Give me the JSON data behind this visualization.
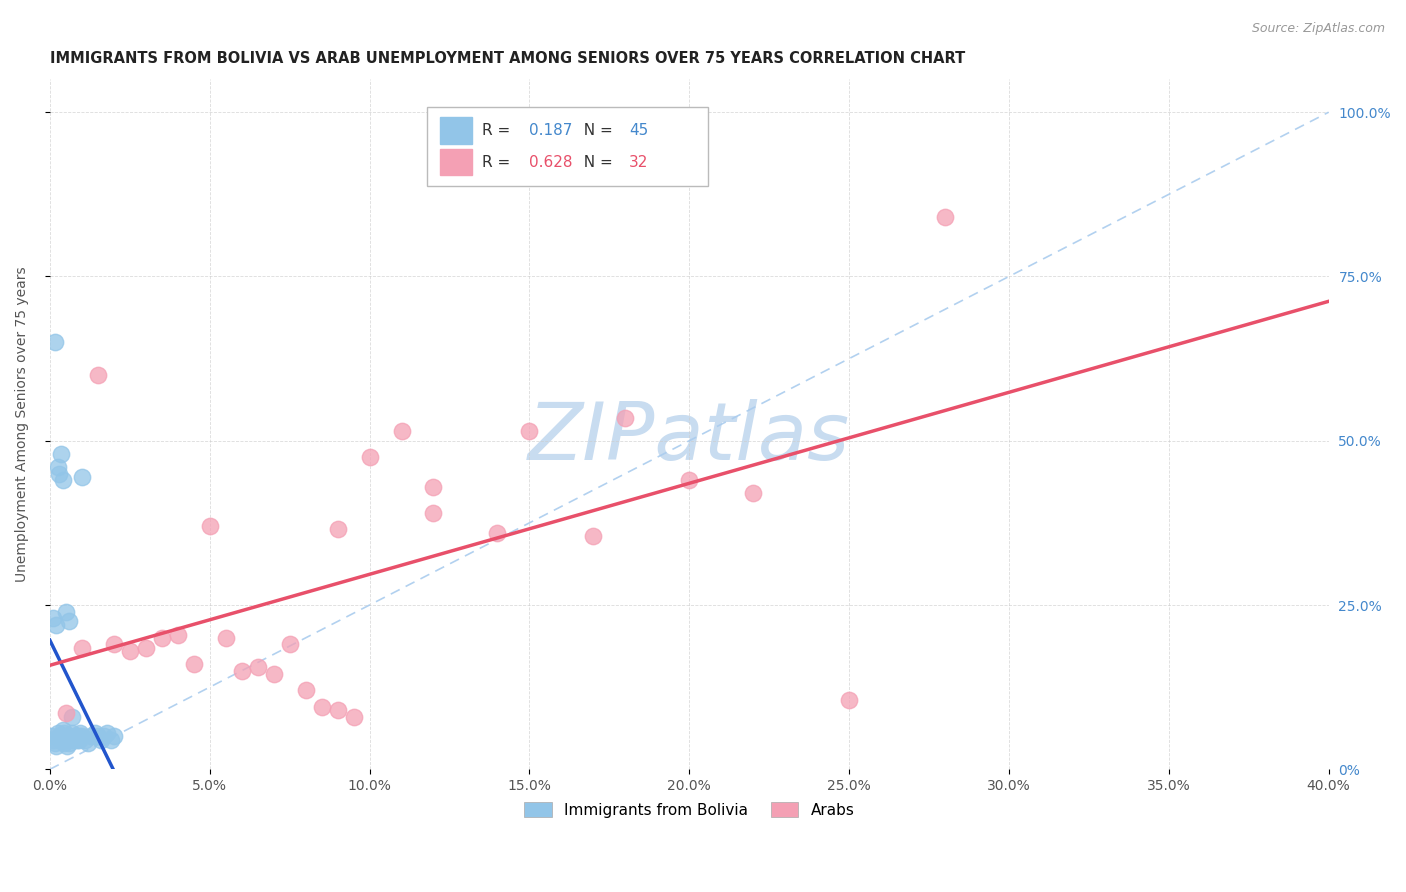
{
  "title": "IMMIGRANTS FROM BOLIVIA VS ARAB UNEMPLOYMENT AMONG SENIORS OVER 75 YEARS CORRELATION CHART",
  "source": "Source: ZipAtlas.com",
  "ylabel": "Unemployment Among Seniors over 75 years",
  "x_tick_labels": [
    "0.0%",
    "5.0%",
    "10.0%",
    "15.0%",
    "20.0%",
    "25.0%",
    "30.0%",
    "35.0%",
    "40.0%"
  ],
  "x_tick_values": [
    0.0,
    5.0,
    10.0,
    15.0,
    20.0,
    25.0,
    30.0,
    35.0,
    40.0
  ],
  "y_tick_labels_right": [
    "0%",
    "25.0%",
    "50.0%",
    "75.0%",
    "100.0%"
  ],
  "y_tick_values": [
    0,
    25,
    50,
    75,
    100
  ],
  "xlim": [
    0,
    40
  ],
  "ylim": [
    0,
    105
  ],
  "bolivia_R": 0.187,
  "bolivia_N": 45,
  "arab_R": 0.628,
  "arab_N": 32,
  "bolivia_color": "#92C5E8",
  "arab_color": "#F4A0B4",
  "bolivia_line_color": "#2255CC",
  "arab_line_color": "#E8506A",
  "legend_label_bolivia": "Immigrants from Bolivia",
  "legend_label_arab": "Arabs",
  "watermark": "ZIPatlas",
  "watermark_color": "#C8DCF0",
  "bolivia_x": [
    0.05,
    0.1,
    0.15,
    0.2,
    0.25,
    0.3,
    0.35,
    0.4,
    0.45,
    0.5,
    0.55,
    0.6,
    0.65,
    0.7,
    0.75,
    0.8,
    0.85,
    0.9,
    0.95,
    1.0,
    1.1,
    1.2,
    1.3,
    1.4,
    1.5,
    1.6,
    1.7,
    1.8,
    1.9,
    2.0,
    0.1,
    0.2,
    0.3,
    0.4,
    0.5,
    0.6,
    0.7,
    0.8,
    0.9,
    1.0,
    0.15,
    0.25,
    0.35,
    0.45,
    0.55
  ],
  "bolivia_y": [
    5.0,
    4.5,
    4.0,
    3.5,
    5.5,
    5.0,
    4.5,
    6.0,
    5.5,
    5.0,
    4.5,
    4.0,
    5.0,
    5.5,
    4.5,
    5.0,
    4.5,
    5.0,
    5.5,
    5.0,
    4.5,
    4.0,
    5.0,
    5.5,
    5.0,
    4.5,
    5.0,
    5.5,
    4.5,
    5.0,
    23.0,
    22.0,
    45.0,
    44.0,
    24.0,
    22.5,
    8.0,
    5.0,
    4.5,
    44.5,
    65.0,
    46.0,
    48.0,
    4.0,
    3.5
  ],
  "arab_x": [
    0.5,
    1.0,
    1.5,
    2.0,
    2.5,
    3.0,
    3.5,
    4.0,
    4.5,
    5.0,
    5.5,
    6.0,
    6.5,
    7.0,
    7.5,
    8.0,
    8.5,
    9.0,
    9.5,
    10.0,
    11.0,
    12.0,
    14.0,
    15.0,
    17.0,
    18.0,
    20.0,
    22.0,
    25.0,
    28.0,
    12.0,
    9.0
  ],
  "arab_y": [
    8.5,
    18.5,
    60.0,
    19.0,
    18.0,
    18.5,
    20.0,
    20.5,
    16.0,
    37.0,
    20.0,
    15.0,
    15.5,
    14.5,
    19.0,
    12.0,
    9.5,
    9.0,
    8.0,
    47.5,
    51.5,
    39.0,
    36.0,
    51.5,
    35.5,
    53.5,
    44.0,
    42.0,
    10.5,
    84.0,
    43.0,
    36.5
  ]
}
